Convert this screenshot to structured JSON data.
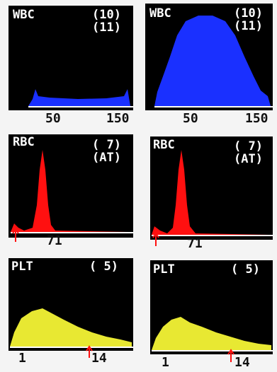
{
  "panels": [
    {
      "title": "WBC",
      "codes": [
        "(10)",
        "(11)"
      ],
      "axis_labels": [
        "50",
        "150"
      ]
    },
    {
      "title": "WBC",
      "codes": [
        "(10)",
        "(11)"
      ],
      "axis_labels": [
        "50",
        "150"
      ]
    },
    {
      "title": "RBC",
      "codes": [
        "( 7)",
        "(AT)"
      ],
      "axis_labels": [
        "71"
      ]
    },
    {
      "title": "RBC",
      "codes": [
        "( 7)",
        "(AT)"
      ],
      "axis_labels": [
        "71"
      ]
    },
    {
      "title": "PLT",
      "codes": [
        "( 5)"
      ],
      "axis_labels": [
        "1",
        "14"
      ]
    },
    {
      "title": "PLT",
      "codes": [
        "( 5)"
      ],
      "axis_labels": [
        "1",
        "14"
      ]
    }
  ]
}
